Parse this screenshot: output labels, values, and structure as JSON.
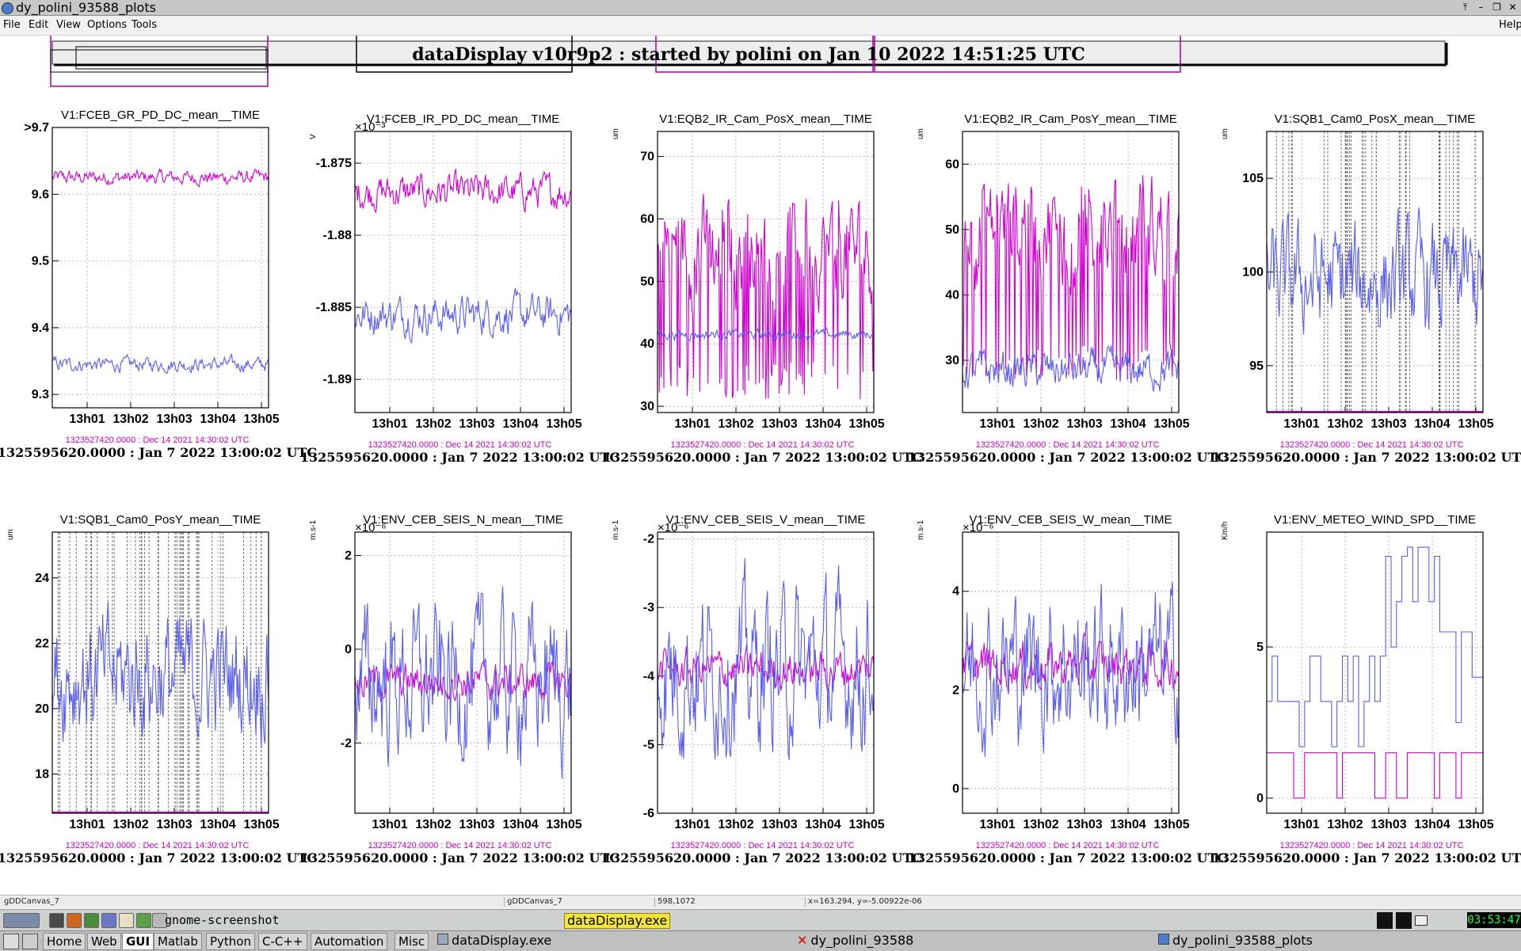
{
  "window": {
    "title": "dy_polini_93588_plots",
    "controls": [
      "⤒",
      "–",
      "❐",
      "✕"
    ]
  },
  "menubar": {
    "items": [
      "File",
      "Edit",
      "View",
      "Options",
      "Tools"
    ],
    "help": "Help"
  },
  "banner": {
    "text": "dataDisplay v10r9p2 : started by polini on Jan 10 2022 14:51:25 UTC"
  },
  "colors": {
    "series1": "#d200d2",
    "series2": "#5a5ef0",
    "grid": "#9a9a9a",
    "ref_text": "#c800c8"
  },
  "time_ticks": [
    "13h01",
    "13h02",
    "13h03",
    "13h04",
    "13h05"
  ],
  "ref_time": "1323527420.0000 : Dec 14 2021 14:30:02 UTC",
  "start_time": "1325595620.0000 : Jan  7 2022 13:00:02 UTC",
  "panels": [
    {
      "title": "V1:FCEB_GR_PD_DC_mean__TIME",
      "unit": "",
      "exponent": "",
      "ylim": [
        9.28,
        9.7
      ],
      "yticks": [
        "9.3",
        "9.4",
        "9.5",
        "9.6",
        ">9.7"
      ],
      "ytick_values": [
        9.3,
        9.4,
        9.5,
        9.6,
        9.7
      ],
      "series1": {
        "mean": 9.625,
        "noise": 0.008,
        "spikes": 0
      },
      "series2": {
        "mean": 9.345,
        "noise": 0.008,
        "spikes": 0
      }
    },
    {
      "title": "V1:FCEB_IR_PD_DC_mean__TIME",
      "unit": "V",
      "exponent": "×10⁻³",
      "ylim": [
        -1.8923,
        -1.8728
      ],
      "yticks": [
        "-1.89",
        "-1.885",
        "-1.88",
        "-1.875"
      ],
      "ytick_values": [
        -1.89,
        -1.885,
        -1.88,
        -1.875
      ],
      "series1": {
        "mean": -1.877,
        "noise": 0.0009,
        "spikes": 0
      },
      "series2": {
        "mean": -1.8855,
        "noise": 0.001,
        "spikes": 0
      }
    },
    {
      "title": "V1:EQB2_IR_Cam_PosX_mean__TIME",
      "unit": "um",
      "exponent": "",
      "ylim": [
        29,
        74
      ],
      "yticks": [
        "30",
        "40",
        "50",
        "60",
        "70"
      ],
      "ytick_values": [
        30,
        40,
        50,
        60,
        70
      ],
      "series1": {
        "mean": 55,
        "noise": 6,
        "spikes": 0.25,
        "spike_to": 34
      },
      "series2": {
        "mean": 41.5,
        "noise": 0.6,
        "spikes": 0
      }
    },
    {
      "title": "V1:EQB2_IR_Cam_PosY_mean__TIME",
      "unit": "um",
      "exponent": "",
      "ylim": [
        22,
        65
      ],
      "yticks": [
        "30",
        "40",
        "50",
        "60"
      ],
      "ytick_values": [
        30,
        40,
        50,
        60
      ],
      "series1": {
        "mean": 50,
        "noise": 6,
        "spikes": 0.25,
        "spike_to": 30
      },
      "series2": {
        "mean": 28.5,
        "noise": 2.2,
        "spikes": 0
      }
    },
    {
      "title": "V1:SQB1_Cam0_PosX_mean__TIME",
      "unit": "um",
      "exponent": "",
      "ylim": [
        92.5,
        107.5
      ],
      "yticks": [
        "95",
        "100",
        "105"
      ],
      "ytick_values": [
        95,
        100,
        105
      ],
      "series1": {
        "mean": 92.5,
        "noise": 0,
        "spikes": 0
      },
      "series2": {
        "mean": 99.5,
        "noise": 2.2,
        "spikes": 0
      },
      "dashed_columns": 34
    },
    {
      "title": "V1:SQB1_Cam0_PosY_mean__TIME",
      "unit": "um",
      "exponent": "",
      "ylim": [
        16.8,
        25.4
      ],
      "yticks": [
        "18",
        "20",
        "22",
        "24"
      ],
      "ytick_values": [
        18,
        20,
        22,
        24
      ],
      "series1": {
        "mean": 16.8,
        "noise": 0,
        "spikes": 0
      },
      "series2": {
        "mean": 21,
        "noise": 1.4,
        "spikes": 0
      },
      "dashed_columns": 40
    },
    {
      "title": "V1:ENV_CEB_SEIS_N_mean__TIME",
      "unit": "m.s-1",
      "exponent": "×10⁻⁶",
      "ylim": [
        -3.5,
        2.5
      ],
      "yticks": [
        "-2",
        "0",
        "2"
      ],
      "ytick_values": [
        -2,
        0,
        2
      ],
      "series1": {
        "mean": -0.7,
        "noise": 0.3,
        "spikes": 0
      },
      "series2": {
        "mean": -0.7,
        "noise": 1.2,
        "spikes": 0
      }
    },
    {
      "title": "V1:ENV_CEB_SEIS_V_mean__TIME",
      "unit": "m.s-1",
      "exponent": "×10⁻⁶",
      "ylim": [
        -6,
        -1.9
      ],
      "yticks": [
        "-6",
        "-5",
        "-4",
        "-3",
        "-2"
      ],
      "ytick_values": [
        -6,
        -5,
        -4,
        -3,
        -2
      ],
      "series1": {
        "mean": -3.9,
        "noise": 0.22,
        "spikes": 0
      },
      "series2": {
        "mean": -3.9,
        "noise": 0.85,
        "spikes": 0
      }
    },
    {
      "title": "V1:ENV_CEB_SEIS_W_mean__TIME",
      "unit": "m.s-1",
      "exponent": "×10⁻⁶",
      "ylim": [
        -0.5,
        5.2
      ],
      "yticks": [
        "0",
        "2",
        "4"
      ],
      "ytick_values": [
        0,
        2,
        4
      ],
      "series1": {
        "mean": 2.5,
        "noise": 0.35,
        "spikes": 0
      },
      "series2": {
        "mean": 2.5,
        "noise": 1.1,
        "spikes": 0
      }
    },
    {
      "title": "V1:ENV_METEO_WIND_SPD__TIME",
      "unit": "Km/h",
      "exponent": "",
      "ylim": [
        -0.5,
        8.8
      ],
      "yticks": [
        "0",
        "5"
      ],
      "ytick_values": [
        0,
        5
      ],
      "series1": {
        "mean": 1.5,
        "noise": 0,
        "spikes": 0,
        "step": "low"
      },
      "series2": {
        "mean": 3.5,
        "noise": 0,
        "spikes": 0,
        "step": "high"
      }
    }
  ],
  "statusbar": {
    "c1": "gDDCanvas_7",
    "c2": "gDDCanvas_7",
    "c3": "598,1072",
    "c4": "x=163.294, y=-5.00922e-06"
  },
  "cmdbar": {
    "command": "gnome-screenshot",
    "running": "dataDisplay.exe",
    "clock": "03:53:47 PM"
  },
  "taskbar": {
    "buttons": [
      "Home",
      "Web",
      "GUI",
      "Matlab",
      "Python",
      "C-C++",
      "Automation",
      "Misc"
    ],
    "active": "GUI",
    "tasks": [
      "dataDisplay.exe",
      "dy_polini_93588",
      "dy_polini_93588_plots"
    ]
  }
}
